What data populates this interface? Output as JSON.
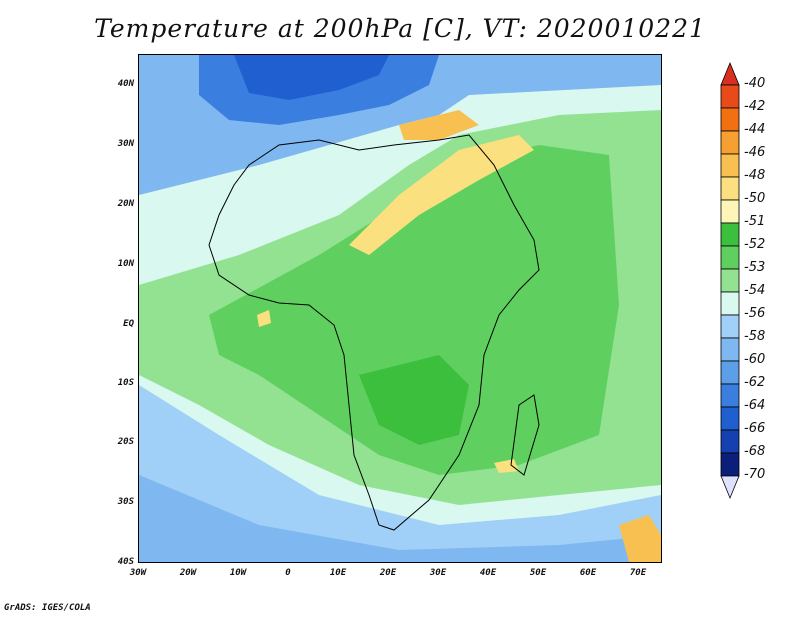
{
  "title": "Temperature at 200hPa [C], VT: 2020010221",
  "footer": "GrADS: IGES/COLA",
  "map": {
    "lon_range": [
      -30,
      75
    ],
    "lat_range": [
      -40,
      45
    ],
    "lat_ticks": [
      "40N",
      "30N",
      "20N",
      "10N",
      "EQ",
      "10S",
      "20S",
      "30S",
      "40S"
    ],
    "lat_values": [
      40,
      30,
      20,
      10,
      0,
      -10,
      -20,
      -30,
      -40
    ],
    "lon_ticks": [
      "30W",
      "20W",
      "10W",
      "0",
      "10E",
      "20E",
      "30E",
      "40E",
      "50E",
      "60E",
      "70E"
    ],
    "lon_values": [
      -30,
      -20,
      -10,
      0,
      10,
      20,
      30,
      40,
      50,
      60,
      70
    ]
  },
  "colorbar": {
    "labels": [
      "-40",
      "-42",
      "-44",
      "-46",
      "-48",
      "-50",
      "-51",
      "-52",
      "-53",
      "-54",
      "-56",
      "-58",
      "-60",
      "-62",
      "-64",
      "-66",
      "-68",
      "-70"
    ],
    "colors": [
      "#d83020",
      "#e84a1a",
      "#f07012",
      "#f5a030",
      "#f8c050",
      "#fbe080",
      "#fdf6b8",
      "#3cbf3c",
      "#5fd05f",
      "#92e292",
      "#d8f8f0",
      "#a0d0f8",
      "#7fb7f0",
      "#5c9ee8",
      "#3a7fe0",
      "#1f5fd0",
      "#1540b0",
      "#0a1e7a",
      "#e0e0ff"
    ]
  }
}
